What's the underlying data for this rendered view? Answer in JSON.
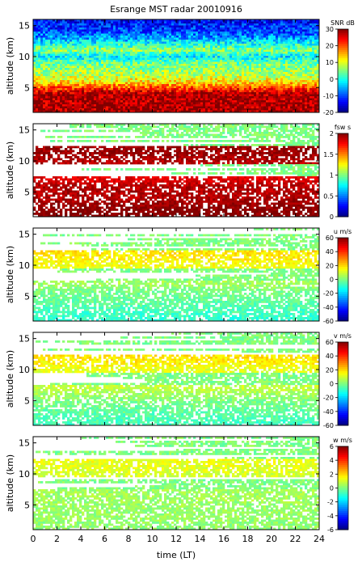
{
  "title": "Esrange MST radar 20010916",
  "chart_data": [
    {
      "type": "heatmap",
      "panel": "SNR",
      "ylabel": "altitude (km)",
      "ylim": [
        1,
        16
      ],
      "yticks": [
        "5",
        "10",
        "15"
      ],
      "xlim": [
        0,
        24
      ],
      "colorbar": {
        "label": "SNR dB",
        "range": [
          -20,
          30
        ],
        "ticks": [
          "30",
          "20",
          "10",
          "0",
          "-10",
          "-20"
        ],
        "colormap": "jet"
      },
      "altitude_profile_km": [
        1,
        2,
        3,
        4,
        5,
        6,
        7,
        8,
        9,
        10,
        11,
        12,
        13,
        14,
        15,
        16
      ],
      "value_profile": [
        28,
        28,
        28,
        28,
        20,
        12,
        8,
        6,
        4,
        -2,
        6,
        0,
        -6,
        -10,
        -12,
        -14
      ]
    },
    {
      "type": "heatmap",
      "panel": "fsw",
      "ylabel": "altitude (km)",
      "ylim": [
        1,
        16
      ],
      "yticks": [
        "5",
        "10",
        "15"
      ],
      "xlim": [
        0,
        24
      ],
      "colorbar": {
        "label": "fsw s",
        "range": [
          0,
          2
        ],
        "ticks": [
          "2",
          "1.5",
          "1",
          "0.5",
          "0"
        ],
        "colormap": "jet"
      },
      "altitude_profile_km": [
        1,
        2,
        3,
        4,
        5,
        6,
        7,
        8,
        9,
        10,
        11,
        12,
        13,
        14,
        15,
        16
      ],
      "value_profile": [
        2,
        2,
        1.95,
        1.9,
        1.9,
        1.9,
        1.8,
        null,
        null,
        1.9,
        1.95,
        1.95,
        null,
        null,
        null,
        null
      ]
    },
    {
      "type": "heatmap",
      "panel": "u",
      "ylabel": "altitude (km)",
      "ylim": [
        1,
        16
      ],
      "yticks": [
        "5",
        "10",
        "15"
      ],
      "xlim": [
        0,
        24
      ],
      "colorbar": {
        "label": "u m/s",
        "range": [
          -60,
          60
        ],
        "ticks": [
          "60",
          "40",
          "20",
          "0",
          "-20",
          "-40",
          "-60"
        ],
        "colormap": "jet"
      },
      "altitude_profile_km": [
        1,
        2,
        3,
        4,
        5,
        6,
        7,
        8,
        9,
        10,
        11,
        12,
        13,
        14,
        15,
        16
      ],
      "value_profile": [
        -10,
        -8,
        -6,
        -4,
        -2,
        0,
        4,
        null,
        null,
        14,
        16,
        18,
        null,
        null,
        null,
        null
      ]
    },
    {
      "type": "heatmap",
      "panel": "v",
      "ylabel": "altitude (km)",
      "ylim": [
        1,
        16
      ],
      "yticks": [
        "5",
        "10",
        "15"
      ],
      "xlim": [
        0,
        24
      ],
      "colorbar": {
        "label": "v m/s",
        "range": [
          -60,
          60
        ],
        "ticks": [
          "60",
          "40",
          "20",
          "0",
          "-20",
          "-40",
          "-60"
        ],
        "colormap": "jet"
      },
      "altitude_profile_km": [
        1,
        2,
        3,
        4,
        5,
        6,
        7,
        8,
        9,
        10,
        11,
        12,
        13,
        14,
        15,
        16
      ],
      "value_profile": [
        -8,
        -6,
        -4,
        -2,
        0,
        4,
        8,
        null,
        null,
        12,
        16,
        18,
        null,
        null,
        null,
        null
      ]
    },
    {
      "type": "heatmap",
      "panel": "w",
      "ylabel": "altitude (km)",
      "xlabel": "time (LT)",
      "ylim": [
        1,
        16
      ],
      "yticks": [
        "5",
        "10",
        "15"
      ],
      "xlim": [
        0,
        24
      ],
      "xticks": [
        "0",
        "2",
        "4",
        "6",
        "8",
        "10",
        "12",
        "14",
        "16",
        "18",
        "20",
        "22",
        "24"
      ],
      "colorbar": {
        "label": "w m/s",
        "range": [
          -6,
          6
        ],
        "ticks": [
          "6",
          "4",
          "2",
          "0",
          "-2",
          "-4",
          "-6"
        ],
        "colormap": "jet"
      },
      "altitude_profile_km": [
        1,
        2,
        3,
        4,
        5,
        6,
        7,
        8,
        9,
        10,
        11,
        12,
        13,
        14,
        15,
        16
      ],
      "value_profile": [
        0.2,
        0.2,
        0.3,
        0.3,
        0.3,
        0.4,
        0.4,
        null,
        null,
        1.0,
        1.2,
        1.3,
        null,
        null,
        null,
        null
      ]
    }
  ]
}
